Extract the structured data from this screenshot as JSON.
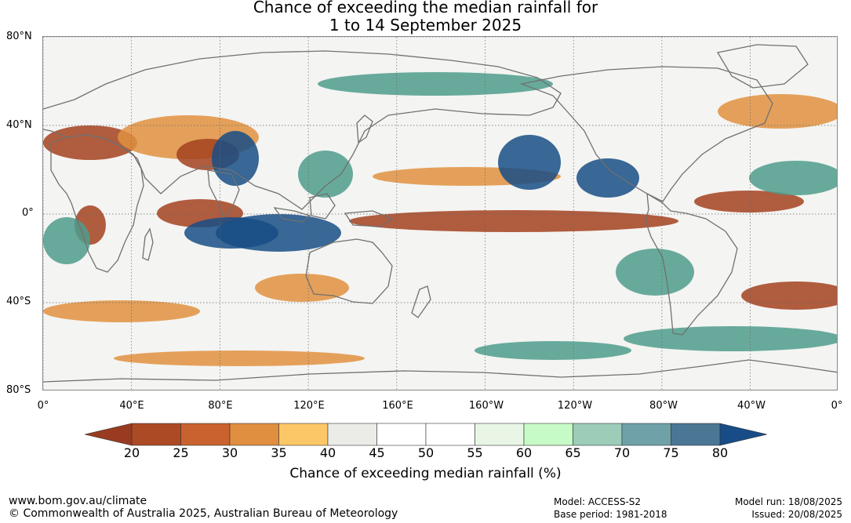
{
  "title": {
    "line1": "Chance of exceeding the median rainfall for",
    "line2": "1 to 14 September 2025"
  },
  "map": {
    "lat_labels": [
      "80°N",
      "40°N",
      "0°",
      "40°S",
      "80°S"
    ],
    "lon_labels": [
      "0°",
      "40°E",
      "80°E",
      "120°E",
      "160°E",
      "160°W",
      "120°W",
      "80°W",
      "40°W",
      "0°"
    ],
    "colors": {
      "strong_dry": "#a3411f",
      "dry": "#e09040",
      "neutral": "#eeeeea",
      "wet": "#4e9c8c",
      "strong_wet": "#174d86",
      "coastline": "#707070"
    }
  },
  "colorbar": {
    "ticks": [
      "20",
      "25",
      "30",
      "35",
      "40",
      "45",
      "50",
      "55",
      "60",
      "65",
      "70",
      "75",
      "80"
    ],
    "colors": [
      "#ad4a26",
      "#c9622e",
      "#df8f3f",
      "#fcc766",
      "#ebebe7",
      "#ffffff",
      "#ffffff",
      "#e9f6e6",
      "#c6fac6",
      "#9bcdb9",
      "#6ea2a8",
      "#4b7794"
    ],
    "low_arrow_color": "#983b21",
    "high_arrow_color": "#174c86",
    "label": "Chance of exceeding median rainfall (%)"
  },
  "footer": {
    "website": "www.bom.gov.au/climate",
    "copyright": "© Commonwealth of Australia 2025, Australian Bureau of Meteorology",
    "model": "Model: ACCESS-S2",
    "base_period": "Base period: 1981-2018",
    "model_run": "Model run: 18/08/2025",
    "issued": "Issued: 20/08/2025"
  }
}
